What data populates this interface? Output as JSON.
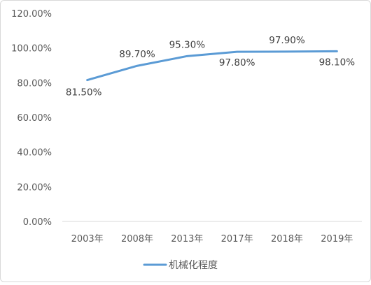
{
  "chart_data": {
    "type": "line",
    "categories": [
      "2003年",
      "2008年",
      "2013年",
      "2017年",
      "2018年",
      "2019年"
    ],
    "series": [
      {
        "name": "机械化程度",
        "values": [
          81.5,
          89.7,
          95.3,
          97.8,
          97.9,
          98.1
        ],
        "data_labels": [
          "81.50%",
          "89.70%",
          "95.30%",
          "97.80%",
          "97.90%",
          "98.10%"
        ],
        "color": "#5b9bd5"
      }
    ],
    "ylim": [
      0,
      120
    ],
    "yticks": [
      0,
      20,
      40,
      60,
      80,
      100,
      120
    ],
    "ytick_labels": [
      "0.00%",
      "20.00%",
      "40.00%",
      "60.00%",
      "80.00%",
      "100.00%",
      "120.00%"
    ],
    "grid": false,
    "legend_position": "bottom",
    "title": "",
    "xlabel": "",
    "ylabel": ""
  }
}
